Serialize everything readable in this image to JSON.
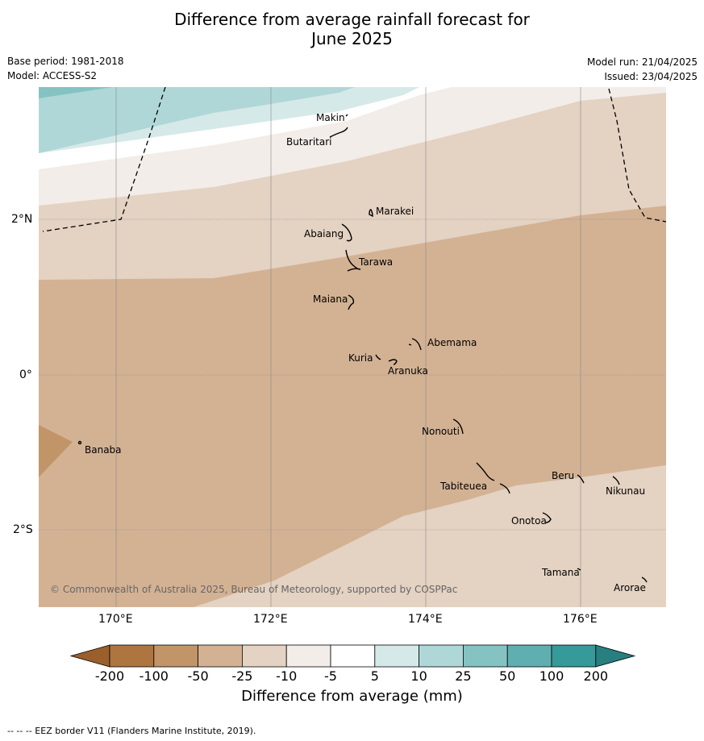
{
  "title_line1": "Difference from average rainfall forecast for",
  "title_line2": "June 2025",
  "base_period": "Base period: 1981-2018",
  "model": "Model: ACCESS-S2",
  "model_run": "Model run: 21/04/2025",
  "issued": "Issued: 23/04/2025",
  "lat_ticks": [
    "2°N",
    "0°",
    "2°S"
  ],
  "lon_ticks": [
    "170°E",
    "172°E",
    "174°E",
    "176°E"
  ],
  "places": [
    {
      "id": "makin",
      "name": "Makin"
    },
    {
      "id": "butaritari",
      "name": "Butaritari"
    },
    {
      "id": "marakei",
      "name": "Marakei"
    },
    {
      "id": "abaiang",
      "name": "Abaiang"
    },
    {
      "id": "tarawa",
      "name": "Tarawa"
    },
    {
      "id": "maiana",
      "name": "Maiana"
    },
    {
      "id": "abemama",
      "name": "Abemama"
    },
    {
      "id": "kuria",
      "name": "Kuria"
    },
    {
      "id": "aranuka",
      "name": "Aranuka"
    },
    {
      "id": "banaba",
      "name": "Banaba"
    },
    {
      "id": "nonouti",
      "name": "Nonouti"
    },
    {
      "id": "beru",
      "name": "Beru"
    },
    {
      "id": "tabiteuea",
      "name": "Tabiteuea"
    },
    {
      "id": "nikunau",
      "name": "Nikunau"
    },
    {
      "id": "onotoa",
      "name": "Onotoa"
    },
    {
      "id": "tamana",
      "name": "Tamana"
    },
    {
      "id": "arorae",
      "name": "Arorae"
    }
  ],
  "copyright": "© Commonwealth of Australia 2025, Bureau of Meteorology, supported by COSPPac",
  "colorbar": {
    "label": "Difference from average (mm)",
    "ticks": [
      "-200",
      "-100",
      "-50",
      "-25",
      "-10",
      "-5",
      "5",
      "10",
      "25",
      "50",
      "100",
      "200"
    ],
    "colors": [
      "#9b5f2c",
      "#ae7540",
      "#c19568",
      "#d3b294",
      "#e4d2c2",
      "#f2ede8",
      "#ffffff",
      "#d6e9e9",
      "#b0d7d7",
      "#85c3c3",
      "#5fafb0",
      "#36999a",
      "#277f80"
    ]
  },
  "footer": "--  --  -- EEZ border V11 (Flanders Marine Institute, 2019)."
}
